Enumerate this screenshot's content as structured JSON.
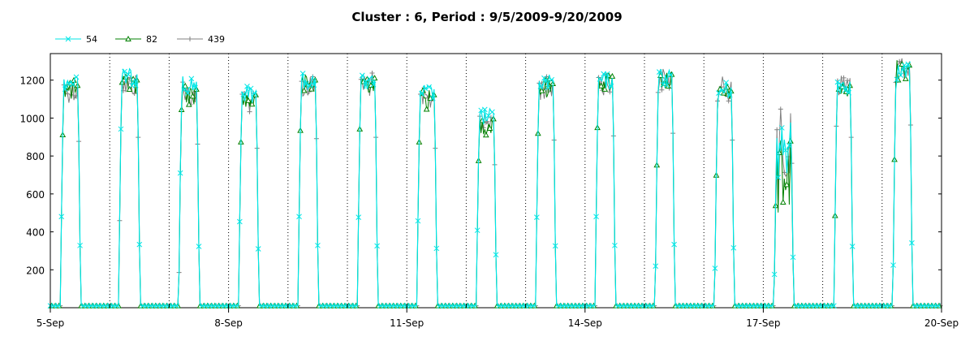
{
  "chart_data": {
    "type": "line",
    "title": "Cluster : 6, Period : 9/5/2009-9/20/2009",
    "xlabel": "",
    "ylabel": "",
    "x_range": [
      "2009-09-05",
      "2009-09-20"
    ],
    "ylim": [
      0,
      1340
    ],
    "x_ticks": [
      "5-Sep",
      "8-Sep",
      "11-Sep",
      "14-Sep",
      "17-Sep",
      "20-Sep"
    ],
    "y_ticks": [
      200,
      400,
      600,
      800,
      1000,
      1200
    ],
    "grid": "vertical dotted at each day",
    "legend_position": "top-left",
    "series": [
      {
        "name": "54",
        "color": "#00e6e6",
        "marker": "x",
        "daily_peak": [
          1240,
          1260,
          1220,
          1170,
          1240,
          1230,
          1180,
          1050,
          1230,
          1240,
          1260,
          1190,
          1000,
          1220,
          1290
        ],
        "daily_start": [
          0.17,
          0.15,
          0.16,
          0.17,
          0.17,
          0.17,
          0.17,
          0.17,
          0.17,
          0.17,
          0.18,
          0.18,
          0.18,
          0.19,
          0.18
        ]
      },
      {
        "name": "82",
        "color": "#008000",
        "marker": "triangle",
        "daily_peak": [
          1200,
          1230,
          1180,
          1150,
          1230,
          1240,
          1150,
          1020,
          1210,
          1250,
          1260,
          1170,
          900,
          1200,
          1310
        ],
        "daily_start": [
          0.17,
          0.15,
          0.16,
          0.17,
          0.17,
          0.17,
          0.17,
          0.17,
          0.17,
          0.17,
          0.18,
          0.18,
          0.18,
          0.19,
          0.18
        ]
      },
      {
        "name": "439",
        "color": "#808080",
        "marker": "plus",
        "daily_peak": [
          1210,
          1240,
          1190,
          1160,
          1230,
          1240,
          1160,
          1040,
          1220,
          1250,
          1270,
          1220,
          1050,
          1240,
          1330
        ],
        "daily_start": [
          0.17,
          0.15,
          0.16,
          0.17,
          0.17,
          0.17,
          0.17,
          0.17,
          0.17,
          0.17,
          0.18,
          0.18,
          0.18,
          0.19,
          0.18
        ]
      }
    ]
  }
}
